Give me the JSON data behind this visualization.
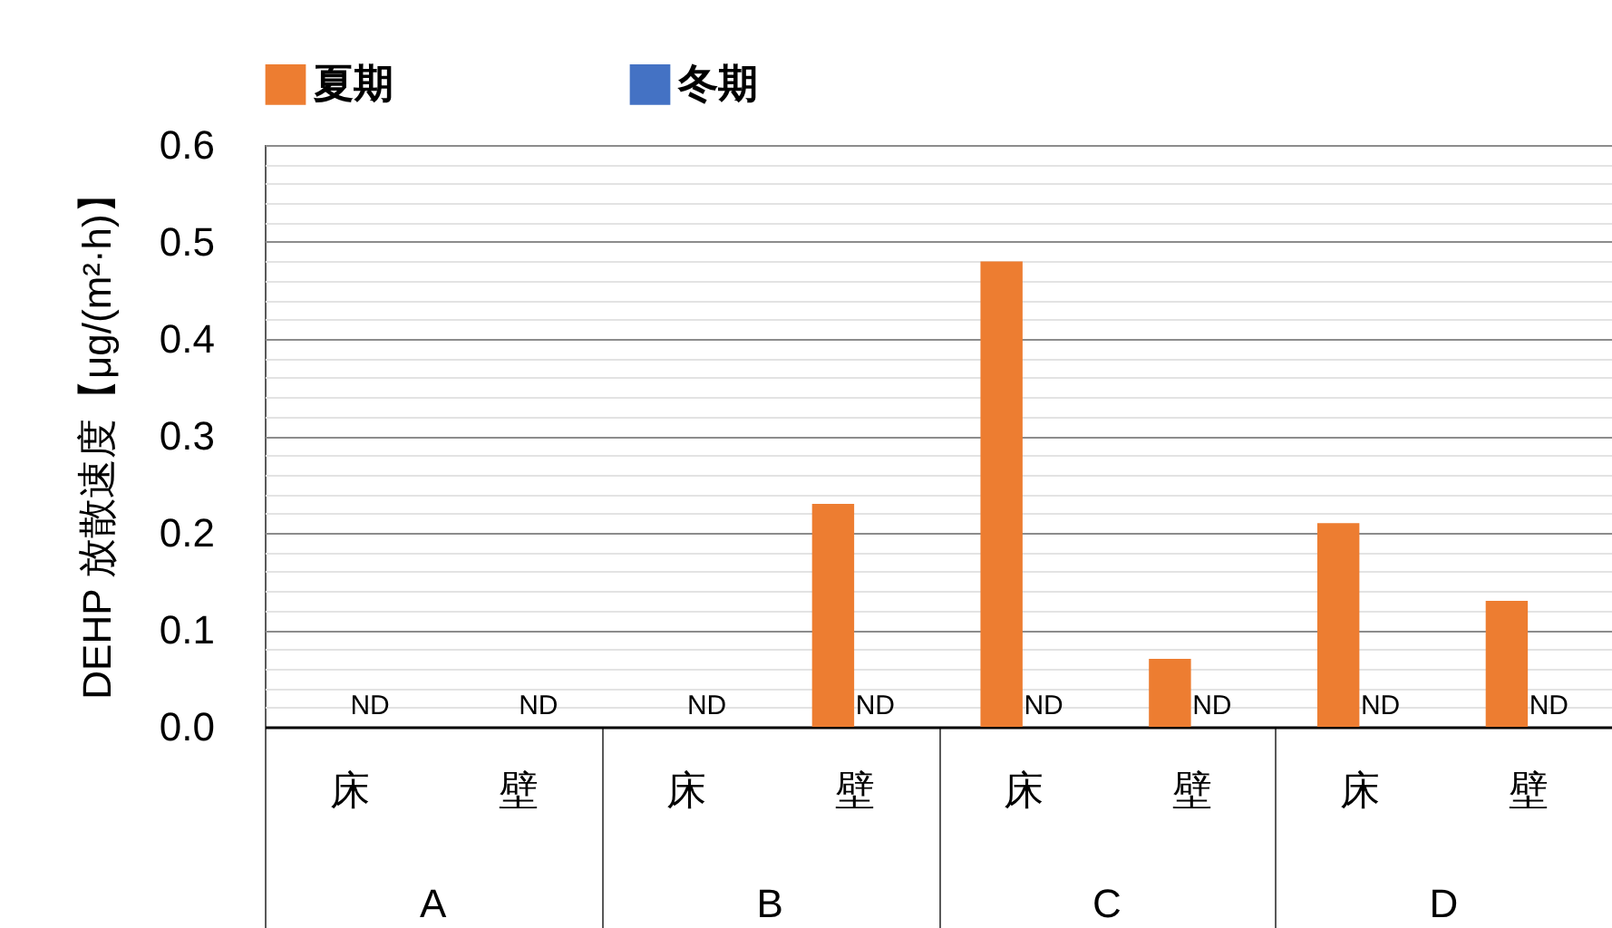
{
  "chart_data": {
    "type": "bar",
    "ylabel": "DEHP 放散速度【μg/(m²·h)】",
    "categories": [
      "床",
      "壁",
      "床",
      "壁",
      "床",
      "壁",
      "床",
      "壁"
    ],
    "annotations": [
      "A",
      "B",
      "C",
      "D"
    ],
    "series": [
      {
        "name": "夏期",
        "color": "#ed7d31",
        "values": [
          null,
          null,
          null,
          0.23,
          0.48,
          0.07,
          0.21,
          0.13
        ]
      },
      {
        "name": "冬期",
        "color": "#4472c4",
        "values": [
          null,
          null,
          null,
          null,
          null,
          null,
          null,
          null
        ],
        "value_labels": [
          "ND",
          "ND",
          "ND",
          "ND",
          "ND",
          "ND",
          "ND",
          "ND"
        ]
      }
    ],
    "ylim": [
      0,
      0.6
    ],
    "yticks": [
      {
        "value": 0,
        "label": "0.0"
      },
      {
        "value": 0.02,
        "label": null
      },
      {
        "value": 0.04,
        "label": null
      },
      {
        "value": 0.06,
        "label": null
      },
      {
        "value": 0.08,
        "label": null
      },
      0.1,
      {
        "value": 0.12,
        "label": null
      },
      {
        "value": 0.14,
        "label": null
      },
      {
        "value": 0.16,
        "label": null
      },
      {
        "value": 0.18,
        "label": null
      },
      0.2,
      {
        "value": 0.22,
        "label": null
      },
      {
        "value": 0.24,
        "label": null
      },
      {
        "value": 0.26,
        "label": null
      },
      {
        "value": 0.28,
        "label": null
      },
      0.3,
      {
        "value": 0.32,
        "label": null
      },
      {
        "value": 0.34,
        "label": null
      },
      {
        "value": 0.36,
        "label": null
      },
      {
        "value": 0.38,
        "label": null
      },
      0.4,
      {
        "value": 0.42,
        "label": null
      },
      {
        "value": 0.44,
        "label": null
      },
      {
        "value": 0.46,
        "label": null
      },
      {
        "value": 0.48,
        "label": null
      },
      0.5,
      {
        "value": 0.52,
        "label": null
      },
      {
        "value": 0.54,
        "label": null
      },
      {
        "value": 0.56,
        "label": null
      },
      {
        "value": 0.58,
        "label": null
      },
      0.6
    ],
    "grid": true,
    "legend": "top"
  }
}
